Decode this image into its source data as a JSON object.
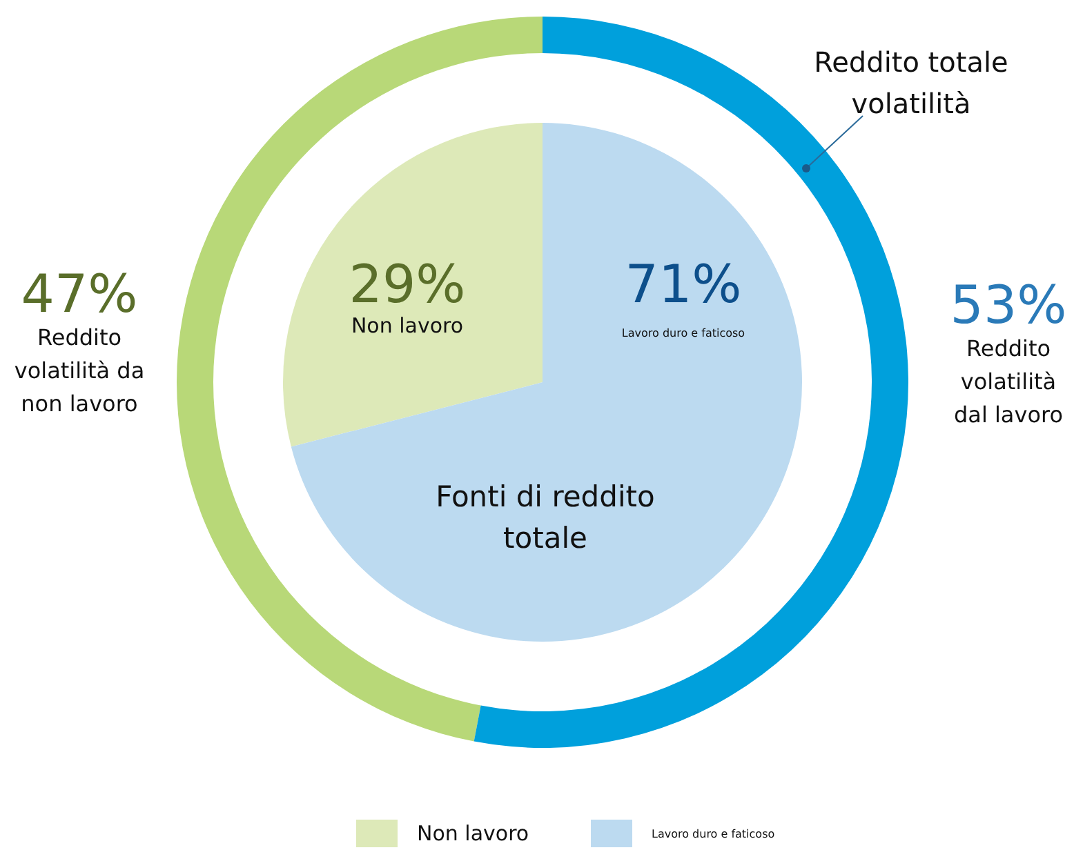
{
  "chart_data": [
    {
      "type": "donut",
      "categories": [
        "Reddito volatilità da non lavoro",
        "Reddito volatilità dal lavoro"
      ],
      "values": [
        47,
        53
      ],
      "value_labels": [
        "47%",
        "53%"
      ],
      "colors": [
        "#b8d878",
        "#00a0dc"
      ],
      "annotations": [
        "Reddito totale volatilità"
      ]
    },
    {
      "type": "pie",
      "categories": [
        "Non lavoro",
        "Lavoro duro e faticoso"
      ],
      "values": [
        29,
        71
      ],
      "value_labels": [
        "29%",
        "71%"
      ],
      "colors": [
        "#dde9b8",
        "#bcdaf0"
      ],
      "annotations": [
        "Fonti di reddito totale"
      ],
      "legend": "bottom"
    }
  ]
}
